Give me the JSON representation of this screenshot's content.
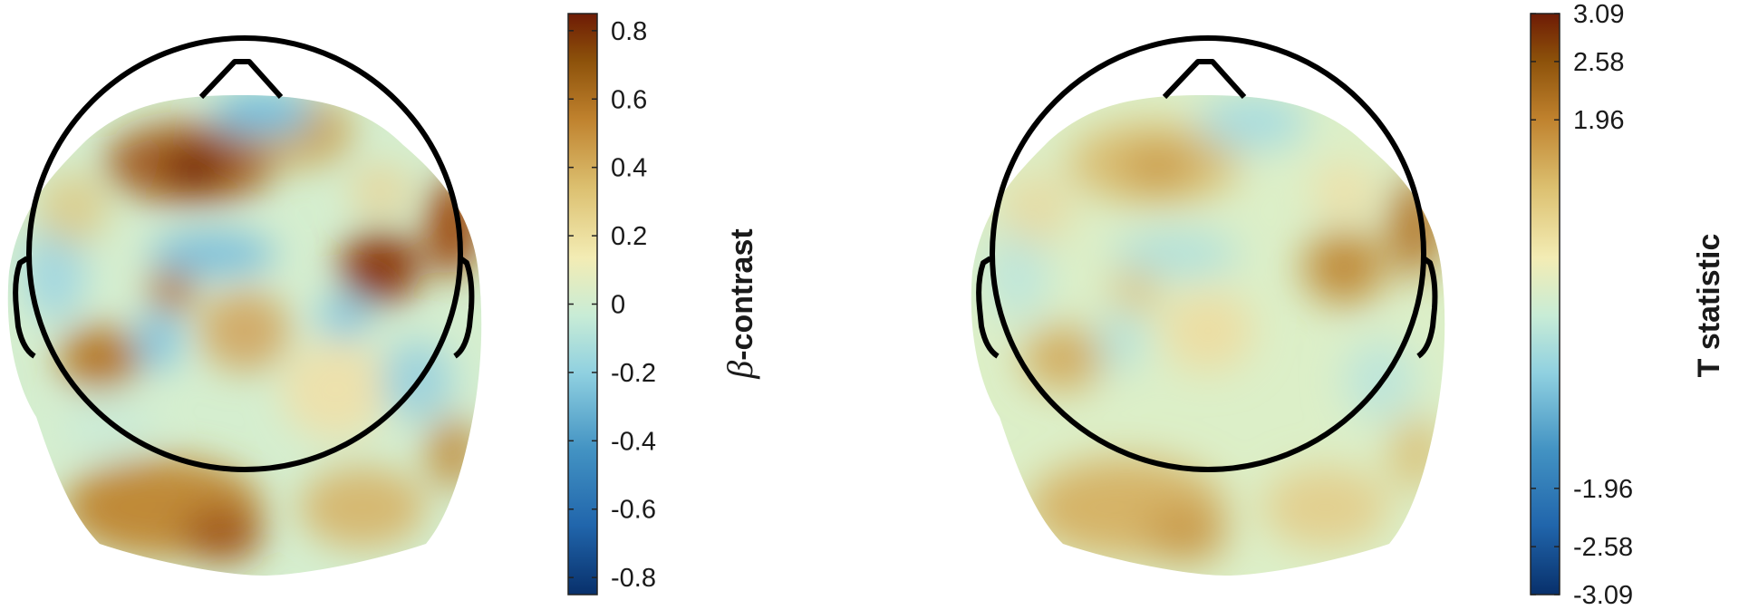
{
  "panels": [
    {
      "id": "beta-contrast",
      "colorbar": {
        "label_symbol": "β",
        "label_text": "-contrast",
        "ticks": [
          "0.8",
          "0.6",
          "0.4",
          "0.2",
          "0",
          "-0.2",
          "-0.4",
          "-0.6",
          "-0.8"
        ],
        "tick_values": [
          0.8,
          0.6,
          0.4,
          0.2,
          0,
          -0.2,
          -0.4,
          -0.6,
          -0.8
        ],
        "range": [
          -0.85,
          0.85
        ]
      }
    },
    {
      "id": "t-statistic",
      "colorbar": {
        "label_text": "T statistic",
        "ticks": [
          "3.09",
          "2.58",
          "1.96",
          "-1.96",
          "-2.58",
          "-3.09"
        ],
        "tick_values": [
          3.09,
          2.58,
          1.96,
          -1.96,
          -2.58,
          -3.09
        ],
        "range": [
          -3.09,
          3.09
        ]
      }
    }
  ],
  "colormap": [
    "#08306b",
    "#2166ac",
    "#4393c3",
    "#8fd0e0",
    "#c8ecd6",
    "#f3ecb4",
    "#dcc070",
    "#bf812d",
    "#8c510a",
    "#6e1b05"
  ],
  "outline_color": "#000000"
}
